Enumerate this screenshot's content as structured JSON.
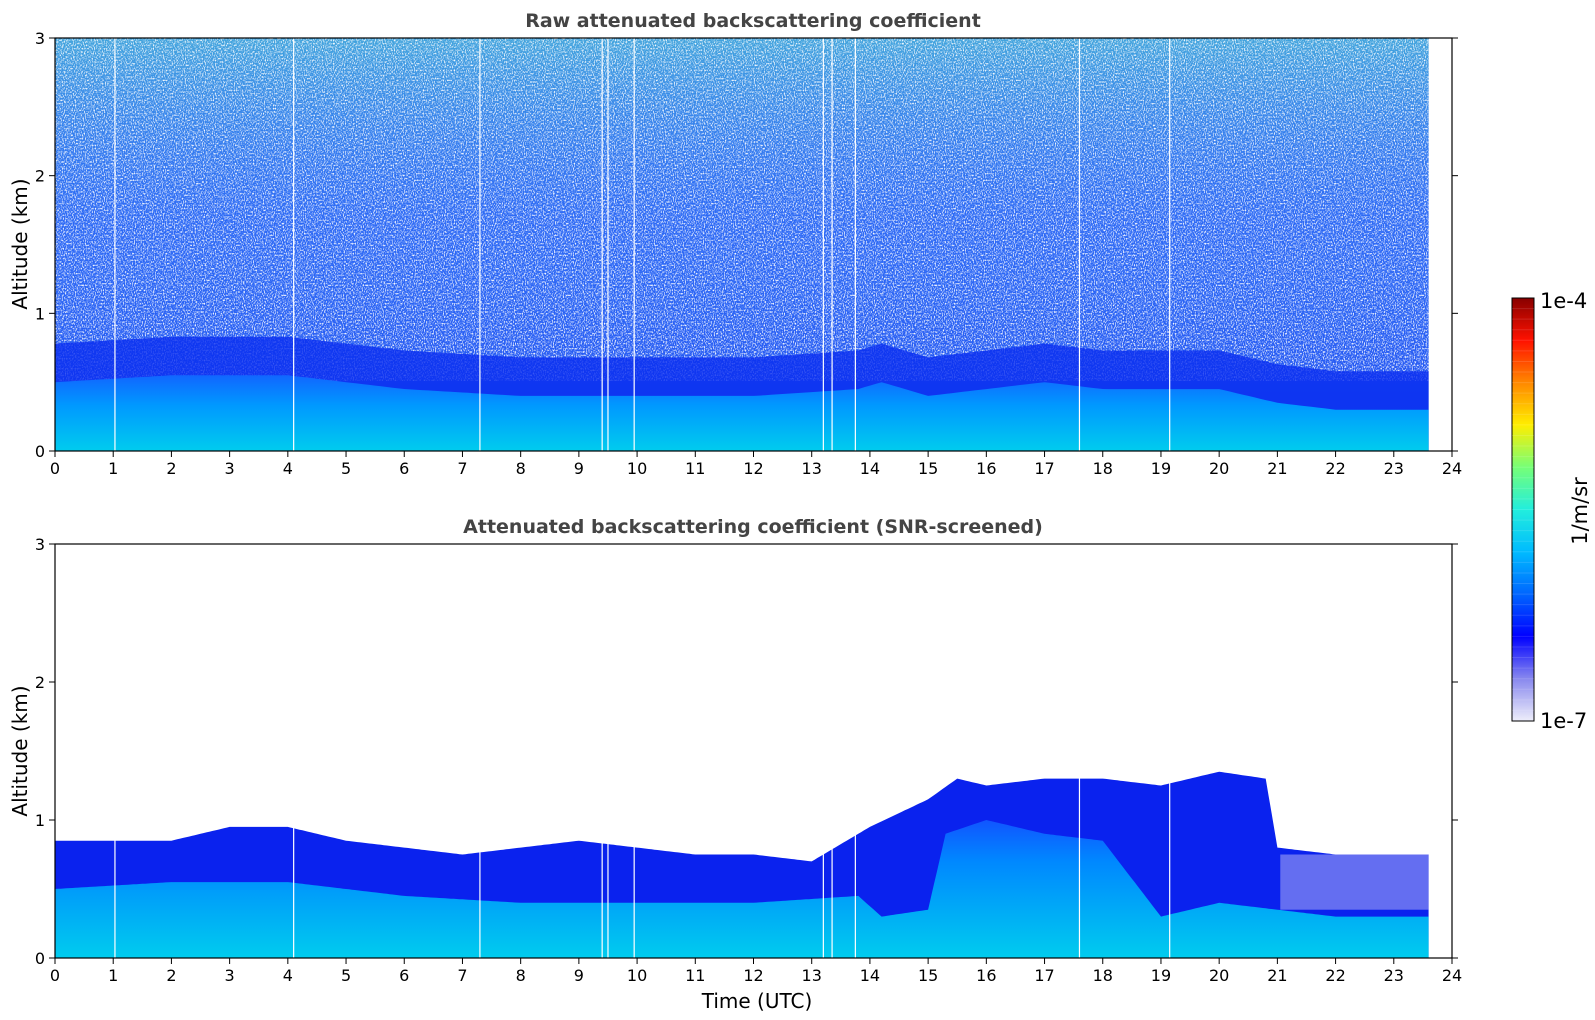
{
  "colorbar": {
    "label": "1/m/sr",
    "max_label": "1e-4",
    "min_label": "1e-7",
    "scale": "log",
    "range": [
      1e-07,
      0.0001
    ],
    "colormap": [
      "#eeeefa",
      "#8888ee",
      "#0000ff",
      "#0066ff",
      "#00bbff",
      "#22eedd",
      "#77ff77",
      "#ffee00",
      "#ff8800",
      "#ff1100",
      "#880000"
    ]
  },
  "chart_data": [
    {
      "type": "heatmap",
      "title": "Raw attenuated backscattering coefficient",
      "xlabel": "",
      "ylabel": "Altitude (km)",
      "xlim": [
        0,
        24
      ],
      "ylim": [
        0,
        3
      ],
      "x_ticks": [
        "0",
        "1",
        "2",
        "3",
        "4",
        "5",
        "6",
        "7",
        "8",
        "9",
        "10",
        "11",
        "12",
        "13",
        "14",
        "15",
        "16",
        "17",
        "18",
        "19",
        "20",
        "21",
        "22",
        "23",
        "24"
      ],
      "y_ticks": [
        "0",
        "1",
        "2",
        "3"
      ],
      "data_end_time": 23.6,
      "gaps_utc": [
        1.03,
        4.1,
        7.3,
        9.4,
        9.5,
        9.95,
        13.2,
        13.35,
        13.75,
        17.6,
        19.15
      ],
      "layer_top_km": [
        [
          0,
          0.5
        ],
        [
          2,
          0.55
        ],
        [
          4,
          0.55
        ],
        [
          6,
          0.45
        ],
        [
          8,
          0.4
        ],
        [
          10,
          0.4
        ],
        [
          12,
          0.4
        ],
        [
          13.8,
          0.45
        ],
        [
          14.2,
          0.5
        ],
        [
          15,
          0.4
        ],
        [
          16,
          0.45
        ],
        [
          17,
          0.5
        ],
        [
          18,
          0.45
        ],
        [
          19,
          0.45
        ],
        [
          20,
          0.45
        ],
        [
          21,
          0.35
        ],
        [
          22,
          0.3
        ],
        [
          23.6,
          0.3
        ]
      ],
      "grid": false
    },
    {
      "type": "heatmap",
      "title": "Attenuated backscattering coefficient (SNR-screened)",
      "xlabel": "Time (UTC)",
      "ylabel": "Altitude (km)",
      "xlim": [
        0,
        24
      ],
      "ylim": [
        0,
        3
      ],
      "x_ticks": [
        "0",
        "1",
        "2",
        "3",
        "4",
        "5",
        "6",
        "7",
        "8",
        "9",
        "10",
        "11",
        "12",
        "13",
        "14",
        "15",
        "16",
        "17",
        "18",
        "19",
        "20",
        "21",
        "22",
        "23",
        "24"
      ],
      "y_ticks": [
        "0",
        "1",
        "2",
        "3"
      ],
      "data_end_time": 23.6,
      "gaps_utc": [
        1.03,
        4.1,
        7.3,
        9.4,
        9.5,
        9.95,
        13.2,
        13.35,
        13.75,
        17.6,
        19.15
      ],
      "screened_top_km": [
        [
          0,
          0.85
        ],
        [
          1,
          0.85
        ],
        [
          2,
          0.85
        ],
        [
          3,
          0.95
        ],
        [
          4,
          0.95
        ],
        [
          5,
          0.85
        ],
        [
          6,
          0.8
        ],
        [
          7,
          0.75
        ],
        [
          8,
          0.8
        ],
        [
          9,
          0.85
        ],
        [
          10,
          0.8
        ],
        [
          11,
          0.75
        ],
        [
          12,
          0.75
        ],
        [
          13,
          0.7
        ],
        [
          14,
          0.95
        ],
        [
          15,
          1.15
        ],
        [
          15.5,
          1.3
        ],
        [
          16,
          1.25
        ],
        [
          17,
          1.3
        ],
        [
          18,
          1.3
        ],
        [
          19,
          1.25
        ],
        [
          20,
          1.35
        ],
        [
          20.8,
          1.3
        ],
        [
          21,
          0.8
        ],
        [
          22,
          0.75
        ],
        [
          23,
          0.75
        ],
        [
          23.6,
          0.75
        ]
      ],
      "grid": false
    }
  ]
}
